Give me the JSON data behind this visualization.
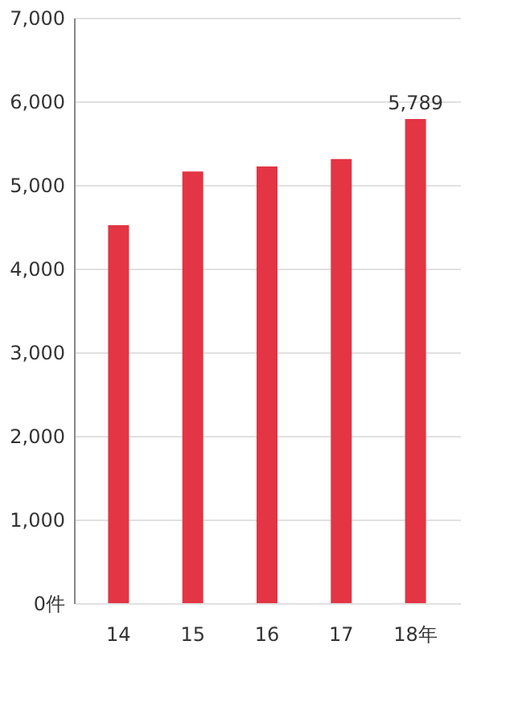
{
  "chart_data": {
    "type": "bar",
    "categories": [
      "14",
      "15",
      "16",
      "17",
      "18年"
    ],
    "values": [
      4520,
      5160,
      5220,
      5310,
      5789
    ],
    "color": "#e33544",
    "value_labels": [
      null,
      null,
      null,
      null,
      "5,789"
    ],
    "ylim": [
      0,
      7000
    ],
    "yticks": [
      {
        "value": 0,
        "label": "0件"
      },
      {
        "value": 1000,
        "label": "1,000"
      },
      {
        "value": 2000,
        "label": "2,000"
      },
      {
        "value": 3000,
        "label": "3,000"
      },
      {
        "value": 4000,
        "label": "4,000"
      },
      {
        "value": 5000,
        "label": "5,000"
      },
      {
        "value": 6000,
        "label": "6,000"
      },
      {
        "value": 7000,
        "label": "7,000"
      }
    ],
    "grid": "y"
  }
}
